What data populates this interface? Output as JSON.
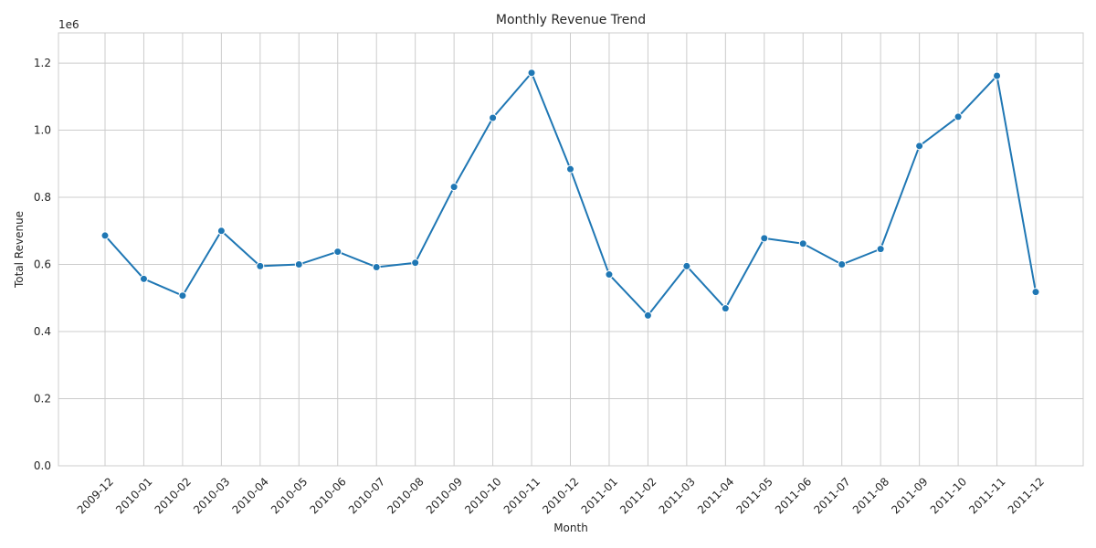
{
  "chart_data": {
    "type": "line",
    "title": "Monthly Revenue Trend",
    "xlabel": "Month",
    "ylabel": "Total Revenue",
    "y_offset_label": "1e6",
    "y_scale_factor": 1000000,
    "ylim": [
      0,
      1.29
    ],
    "yticks": [
      "0.0",
      "0.2",
      "0.4",
      "0.6",
      "0.8",
      "1.0",
      "1.2"
    ],
    "grid": true,
    "categories": [
      "2009-12",
      "2010-01",
      "2010-02",
      "2010-03",
      "2010-04",
      "2010-05",
      "2010-06",
      "2010-07",
      "2010-08",
      "2010-09",
      "2010-10",
      "2010-11",
      "2010-12",
      "2011-01",
      "2011-02",
      "2011-03",
      "2011-04",
      "2011-05",
      "2011-06",
      "2011-07",
      "2011-08",
      "2011-09",
      "2011-10",
      "2011-11",
      "2011-12"
    ],
    "series": [
      {
        "values": [
          0.686,
          0.557,
          0.507,
          0.7,
          0.595,
          0.6,
          0.638,
          0.592,
          0.605,
          0.831,
          1.037,
          1.171,
          0.884,
          0.57,
          0.448,
          0.595,
          0.469,
          0.678,
          0.662,
          0.6,
          0.646,
          0.953,
          1.04,
          1.162,
          0.518
        ],
        "color": "#1f77b4",
        "marker": "circle"
      }
    ],
    "colors": {
      "grid": "#cccccc",
      "axes_edge": "#cccccc",
      "text": "#262626",
      "background": "#ffffff"
    }
  }
}
